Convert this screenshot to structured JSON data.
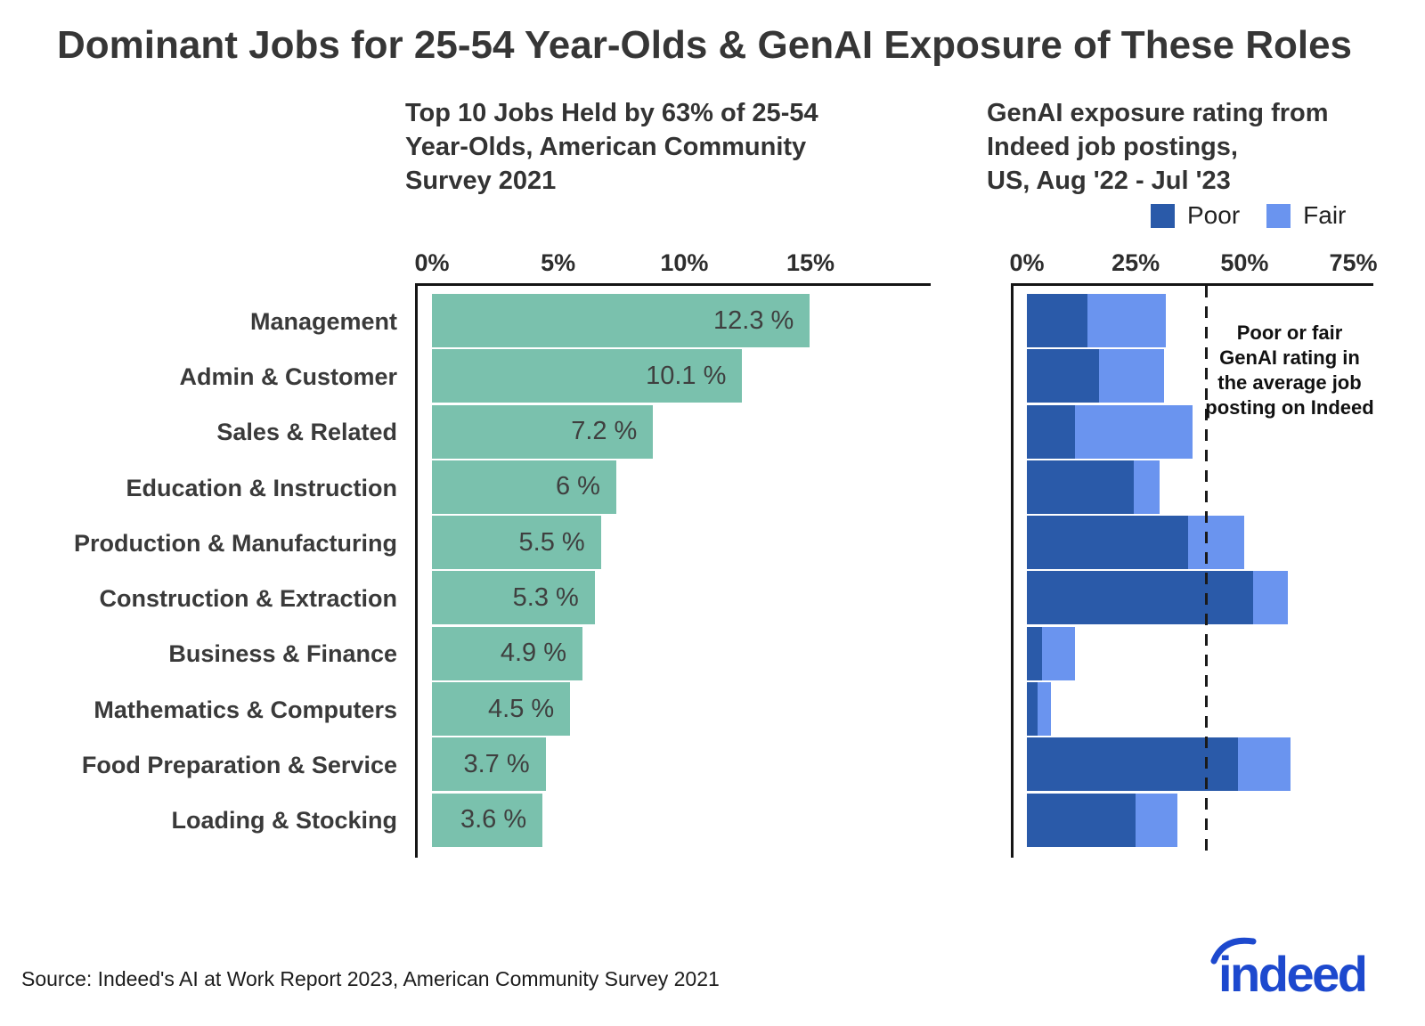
{
  "title": "Dominant Jobs for 25-54 Year-Olds & GenAI Exposure of These Roles",
  "source": "Source: Indeed's AI at Work Report 2023, American Community Survey 2021",
  "logo_text": "indeed",
  "colors": {
    "teal": "#7AC1AD",
    "poor_blue": "#2A5AA9",
    "fair_blue": "#6A94EF",
    "axis_black": "#151515",
    "logo_blue": "#1D49CE"
  },
  "chart_data": [
    {
      "type": "bar",
      "orientation": "horizontal",
      "title": "Top 10 Jobs Held by 63% of 25-54\nYear-Olds, American Community\nSurvey 2021",
      "categories": [
        "Management",
        "Admin & Customer",
        "Sales & Related",
        "Education & Instruction",
        "Production & Manufacturing",
        "Construction & Extraction",
        "Business & Finance",
        "Mathematics & Computers",
        "Food Preparation & Service",
        "Loading & Stocking"
      ],
      "values": [
        12.3,
        10.1,
        7.2,
        6,
        5.5,
        5.3,
        4.9,
        4.5,
        3.7,
        3.6
      ],
      "value_labels": [
        "12.3 %",
        "10.1 %",
        "7.2 %",
        "6 %",
        "5.5 %",
        "5.3 %",
        "4.9 %",
        "4.5 %",
        "3.7 %",
        "3.6 %"
      ],
      "ticks": [
        {
          "label": "0%",
          "v": 0
        },
        {
          "label": "5%",
          "v": 5
        },
        {
          "label": "10%",
          "v": 10
        },
        {
          "label": "15%",
          "v": 15
        }
      ],
      "xlabel": "",
      "ylabel": "",
      "xlim": [
        0,
        16.2
      ],
      "grid": false
    },
    {
      "type": "stacked-bar",
      "orientation": "horizontal",
      "title": "GenAI exposure rating from\nIndeed job postings,\nUS, Aug '22 - Jul '23",
      "categories": [
        "Management",
        "Admin & Customer",
        "Sales & Related",
        "Education & Instruction",
        "Production & Manufacturing",
        "Construction & Extraction",
        "Business & Finance",
        "Mathematics & Computers",
        "Food Preparation & Service",
        "Loading & Stocking"
      ],
      "series": [
        {
          "name": "Poor",
          "values": [
            14,
            16.5,
            11,
            24.5,
            37,
            52,
            3.5,
            2.5,
            48.5,
            25
          ]
        },
        {
          "name": "Fair",
          "values": [
            18,
            15,
            27,
            6,
            13,
            8,
            7.5,
            3,
            12,
            9.5
          ]
        }
      ],
      "legend": [
        "Poor",
        "Fair"
      ],
      "legend_position": "top-right",
      "ticks": [
        {
          "label": "0%",
          "v": 0
        },
        {
          "label": "25%",
          "v": 25
        },
        {
          "label": "50%",
          "v": 50
        },
        {
          "label": "75%",
          "v": 75
        }
      ],
      "xlabel": "",
      "ylabel": "",
      "xlim": [
        0,
        79.5
      ],
      "dashed_line_at": 41.5,
      "annotation": "Poor or fair\nGenAI rating in\nthe average job\nposting on Indeed",
      "grid": false
    }
  ]
}
